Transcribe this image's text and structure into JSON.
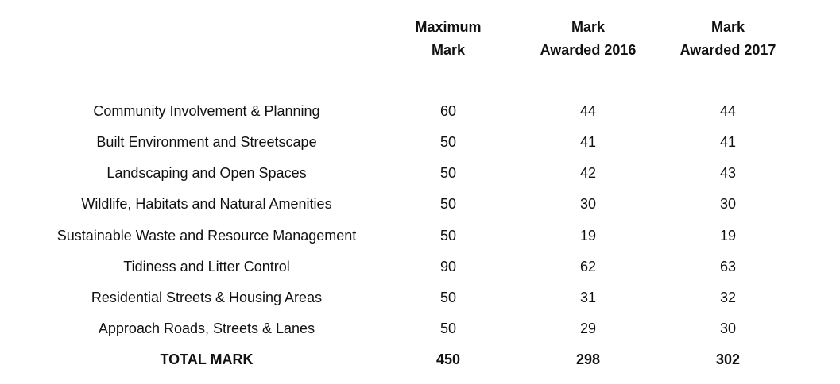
{
  "headers": {
    "max_line1": "Maximum",
    "max_line2": "Mark",
    "y2016_line1": "Mark",
    "y2016_line2": "Awarded 2016",
    "y2017_line1": "Mark",
    "y2017_line2": "Awarded 2017"
  },
  "rows": [
    {
      "name": "Community Involvement & Planning",
      "max": "60",
      "y2016": "44",
      "y2017": "44"
    },
    {
      "name": "Built Environment and Streetscape",
      "max": "50",
      "y2016": "41",
      "y2017": "41"
    },
    {
      "name": "Landscaping and Open Spaces",
      "max": "50",
      "y2016": "42",
      "y2017": "43"
    },
    {
      "name": "Wildlife, Habitats and Natural Amenities",
      "max": "50",
      "y2016": "30",
      "y2017": "30"
    },
    {
      "name": "Sustainable Waste and Resource Management",
      "max": "50",
      "y2016": "19",
      "y2017": "19"
    },
    {
      "name": "Tidiness and Litter Control",
      "max": "90",
      "y2016": "62",
      "y2017": "63"
    },
    {
      "name": "Residential Streets & Housing Areas",
      "max": "50",
      "y2016": "31",
      "y2017": "32"
    },
    {
      "name": "Approach Roads, Streets & Lanes",
      "max": "50",
      "y2016": "29",
      "y2017": "30"
    }
  ],
  "total": {
    "name": "TOTAL MARK",
    "max": "450",
    "y2016": "298",
    "y2017": "302"
  }
}
